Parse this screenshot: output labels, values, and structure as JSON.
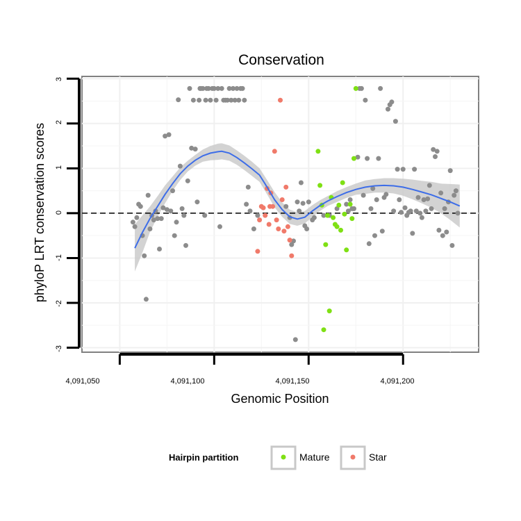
{
  "chart_data": {
    "type": "scatter",
    "title": "Conservation",
    "xlabel": "Genomic Position",
    "ylabel": "phyloP LRT conservation scores",
    "xlim": [
      4091030,
      4091240
    ],
    "ylim": [
      -3.1,
      3.05
    ],
    "x_ticks": [
      4091050,
      4091100,
      4091150,
      4091200
    ],
    "x_tick_labels": [
      "4,091,050",
      "4,091,100",
      "4,091,150",
      "4,091,200"
    ],
    "y_ticks": [
      -3,
      -2,
      -1,
      0,
      1,
      2,
      3
    ],
    "y_tick_labels": [
      "-3",
      "-2",
      "-1",
      "0",
      "1",
      "2",
      "3"
    ],
    "reference_line": {
      "y": 0,
      "style": "dashed"
    },
    "legend": {
      "title": "Hairpin partition",
      "position": "bottom",
      "entries": [
        {
          "label": "Mature",
          "color": "#7FE014"
        },
        {
          "label": "Star",
          "color": "#F07A6A"
        }
      ]
    },
    "colors": {
      "Other": "#8C8C8C",
      "Mature": "#7FE014",
      "Star": "#F07A6A",
      "smooth": "#3D6DE8",
      "band": "#C8C8C8"
    },
    "smooth_curve": {
      "x": [
        4091058,
        4091062,
        4091066,
        4091070,
        4091074,
        4091078,
        4091082,
        4091086,
        4091090,
        4091094,
        4091098,
        4091102,
        4091104,
        4091108,
        4091112,
        4091116,
        4091120,
        4091124,
        4091128,
        4091132,
        4091136,
        4091140,
        4091144,
        4091148,
        4091152,
        4091156,
        4091160,
        4091165,
        4091170,
        4091175,
        4091180,
        4091185,
        4091190,
        4091195,
        4091200,
        4091205,
        4091210,
        4091215,
        4091220,
        4091225,
        4091230
      ],
      "y": [
        -0.78,
        -0.43,
        -0.12,
        0.15,
        0.42,
        0.66,
        0.88,
        1.05,
        1.18,
        1.28,
        1.34,
        1.37,
        1.38,
        1.34,
        1.24,
        1.12,
        0.99,
        0.85,
        0.58,
        0.3,
        0.08,
        -0.08,
        -0.13,
        -0.09,
        0.05,
        0.17,
        0.27,
        0.37,
        0.46,
        0.53,
        0.58,
        0.61,
        0.62,
        0.61,
        0.58,
        0.53,
        0.47,
        0.41,
        0.33,
        0.25,
        0.16
      ]
    },
    "confidence_band": {
      "upper": [
        -0.25,
        -0.05,
        0.15,
        0.38,
        0.62,
        0.82,
        1.02,
        1.17,
        1.3,
        1.42,
        1.5,
        1.55,
        1.56,
        1.51,
        1.4,
        1.28,
        1.15,
        1.0,
        0.74,
        0.47,
        0.24,
        0.08,
        0.02,
        0.05,
        0.18,
        0.29,
        0.38,
        0.49,
        0.58,
        0.66,
        0.73,
        0.76,
        0.78,
        0.78,
        0.77,
        0.75,
        0.72,
        0.7,
        0.66,
        0.65,
        0.64
      ],
      "lower": [
        -1.3,
        -0.88,
        -0.42,
        -0.08,
        0.22,
        0.5,
        0.74,
        0.93,
        1.06,
        1.15,
        1.18,
        1.19,
        1.2,
        1.17,
        1.08,
        0.96,
        0.83,
        0.7,
        0.42,
        0.13,
        -0.08,
        -0.24,
        -0.28,
        -0.23,
        -0.08,
        0.05,
        0.16,
        0.25,
        0.34,
        0.41,
        0.43,
        0.46,
        0.46,
        0.44,
        0.39,
        0.31,
        0.22,
        0.12,
        0.0,
        -0.15,
        -0.32
      ]
    },
    "series": [
      {
        "name": "Other",
        "points": [
          [
            4091057,
            -0.2
          ],
          [
            4091058,
            -0.3
          ],
          [
            4091059,
            -0.1
          ],
          [
            4091060,
            0.2
          ],
          [
            4091061,
            0.15
          ],
          [
            4091062,
            -0.5
          ],
          [
            4091063,
            -0.95
          ],
          [
            4091064,
            -1.92
          ],
          [
            4091065,
            0.4
          ],
          [
            4091066,
            -0.35
          ],
          [
            4091067,
            -0.05
          ],
          [
            4091068,
            -0.15
          ],
          [
            4091069,
            0.05
          ],
          [
            4091070,
            -0.12
          ],
          [
            4091071,
            -0.8
          ],
          [
            4091072,
            -0.12
          ],
          [
            4091073,
            0.12
          ],
          [
            4091074,
            1.72
          ],
          [
            4091075,
            0.08
          ],
          [
            4091076,
            1.75
          ],
          [
            4091077,
            0.05
          ],
          [
            4091078,
            0.5
          ],
          [
            4091079,
            -0.5
          ],
          [
            4091080,
            -0.2
          ],
          [
            4091081,
            2.53
          ],
          [
            4091082,
            1.05
          ],
          [
            4091083,
            0.1
          ],
          [
            4091084,
            -0.05
          ],
          [
            4091085,
            -0.72
          ],
          [
            4091086,
            0.72
          ],
          [
            4091087,
            2.78
          ],
          [
            4091088,
            1.45
          ],
          [
            4091089,
            2.52
          ],
          [
            4091090,
            1.43
          ],
          [
            4091091,
            0.25
          ],
          [
            4091092,
            2.52
          ],
          [
            4091092.5,
            2.78
          ],
          [
            4091093,
            2.78
          ],
          [
            4091094,
            2.78
          ],
          [
            4091095,
            -0.05
          ],
          [
            4091095.5,
            2.52
          ],
          [
            4091096,
            2.78
          ],
          [
            4091097,
            2.78
          ],
          [
            4091098,
            2.52
          ],
          [
            4091099,
            2.78
          ],
          [
            4091100,
            2.78
          ],
          [
            4091101,
            2.52
          ],
          [
            4091102,
            2.78
          ],
          [
            4091103,
            -0.3
          ],
          [
            4091104,
            2.78
          ],
          [
            4091105,
            2.52
          ],
          [
            4091106,
            2.52
          ],
          [
            4091107,
            2.52
          ],
          [
            4091108,
            2.78
          ],
          [
            4091109,
            2.52
          ],
          [
            4091110,
            2.78
          ],
          [
            4091111,
            2.52
          ],
          [
            4091112,
            2.78
          ],
          [
            4091113,
            2.52
          ],
          [
            4091114,
            2.78
          ],
          [
            4091115,
            2.78
          ],
          [
            4091116,
            2.52
          ],
          [
            4091117,
            0.2
          ],
          [
            4091118,
            0.58
          ],
          [
            4091119,
            0.05
          ],
          [
            4091121,
            -0.35
          ],
          [
            4091123,
            -0.05
          ],
          [
            4091138,
            0.15
          ],
          [
            4091140,
            -0.1
          ],
          [
            4091141,
            -0.7
          ],
          [
            4091142,
            -0.62
          ],
          [
            4091143,
            -2.82
          ],
          [
            4091144,
            0.25
          ],
          [
            4091145,
            0.05
          ],
          [
            4091146,
            0.68
          ],
          [
            4091147,
            0.22
          ],
          [
            4091148,
            -0.28
          ],
          [
            4091149,
            -0.35
          ],
          [
            4091150,
            0.25
          ],
          [
            4091152,
            -0.15
          ],
          [
            4091153,
            -0.1
          ],
          [
            4091158,
            -0.05
          ],
          [
            4091161,
            -0.05
          ],
          [
            4091165,
            0.1
          ],
          [
            4091170,
            0.2
          ],
          [
            4091171,
            0.05
          ],
          [
            4091172,
            0.3
          ],
          [
            4091173,
            0.1
          ],
          [
            4091174,
            0.1
          ],
          [
            4091176,
            1.25
          ],
          [
            4091177,
            2.78
          ],
          [
            4091178,
            2.78
          ],
          [
            4091179,
            0.4
          ],
          [
            4091180,
            2.52
          ],
          [
            4091181,
            1.22
          ],
          [
            4091182,
            -0.68
          ],
          [
            4091183,
            0.1
          ],
          [
            4091184,
            0.55
          ],
          [
            4091185,
            -0.5
          ],
          [
            4091186,
            0.3
          ],
          [
            4091187,
            1.22
          ],
          [
            4091188,
            2.78
          ],
          [
            4091189,
            -0.4
          ],
          [
            4091190,
            0.35
          ],
          [
            4091191,
            0.42
          ],
          [
            4091192,
            2.32
          ],
          [
            4091193,
            2.42
          ],
          [
            4091194,
            2.48
          ],
          [
            4091195,
            0.05
          ],
          [
            4091196,
            2.05
          ],
          [
            4091197,
            0.98
          ],
          [
            4091198,
            0.3
          ],
          [
            4091199,
            0.02
          ],
          [
            4091200,
            0.98
          ],
          [
            4091201,
            0.12
          ],
          [
            4091202,
            -0.05
          ],
          [
            4091203,
            0.02
          ],
          [
            4091204,
            0.05
          ],
          [
            4091205,
            -0.45
          ],
          [
            4091206,
            0.98
          ],
          [
            4091207,
            0.05
          ],
          [
            4091208,
            0.35
          ],
          [
            4091209,
            0.0
          ],
          [
            4091210,
            -0.1
          ],
          [
            4091211,
            0.3
          ],
          [
            4091212,
            0.05
          ],
          [
            4091213,
            0.32
          ],
          [
            4091214,
            0.62
          ],
          [
            4091215,
            0.1
          ],
          [
            4091216,
            1.42
          ],
          [
            4091217,
            1.26
          ],
          [
            4091218,
            1.38
          ],
          [
            4091219,
            -0.38
          ],
          [
            4091220,
            0.45
          ],
          [
            4091221,
            -0.5
          ],
          [
            4091222,
            0.1
          ],
          [
            4091223,
            -0.42
          ],
          [
            4091224,
            0.25
          ],
          [
            4091225,
            0.95
          ],
          [
            4091226,
            -0.72
          ],
          [
            4091227,
            0.4
          ],
          [
            4091228,
            0.5
          ],
          [
            4091229,
            0.0
          ]
        ]
      },
      {
        "name": "Mature",
        "points": [
          [
            4091155,
            1.38
          ],
          [
            4091156,
            0.62
          ],
          [
            4091157,
            0.18
          ],
          [
            4091158,
            -2.6
          ],
          [
            4091159,
            -0.7
          ],
          [
            4091160,
            -0.05
          ],
          [
            4091161,
            -2.18
          ],
          [
            4091162,
            0.35
          ],
          [
            4091163,
            -0.1
          ],
          [
            4091164,
            -0.25
          ],
          [
            4091165,
            -0.3
          ],
          [
            4091166,
            0.18
          ],
          [
            4091167,
            -0.38
          ],
          [
            4091168,
            0.68
          ],
          [
            4091169,
            -0.02
          ],
          [
            4091170,
            -0.82
          ],
          [
            4091172,
            0.2
          ],
          [
            4091173,
            -0.12
          ],
          [
            4091174,
            1.22
          ],
          [
            4091175,
            2.78
          ]
        ]
      },
      {
        "name": "Star",
        "points": [
          [
            4091123,
            -0.85
          ],
          [
            4091124,
            -0.15
          ],
          [
            4091125,
            0.15
          ],
          [
            4091126,
            0.12
          ],
          [
            4091127,
            -0.05
          ],
          [
            4091128,
            0.55
          ],
          [
            4091129,
            -0.25
          ],
          [
            4091129.5,
            0.15
          ],
          [
            4091130,
            0.45
          ],
          [
            4091131,
            0.15
          ],
          [
            4091132,
            1.38
          ],
          [
            4091133,
            -0.15
          ],
          [
            4091134,
            -0.35
          ],
          [
            4091135,
            2.52
          ],
          [
            4091136,
            0.3
          ],
          [
            4091137,
            -0.4
          ],
          [
            4091138,
            0.58
          ],
          [
            4091139,
            -0.3
          ],
          [
            4091140,
            -0.6
          ],
          [
            4091141,
            -0.95
          ]
        ]
      }
    ]
  }
}
